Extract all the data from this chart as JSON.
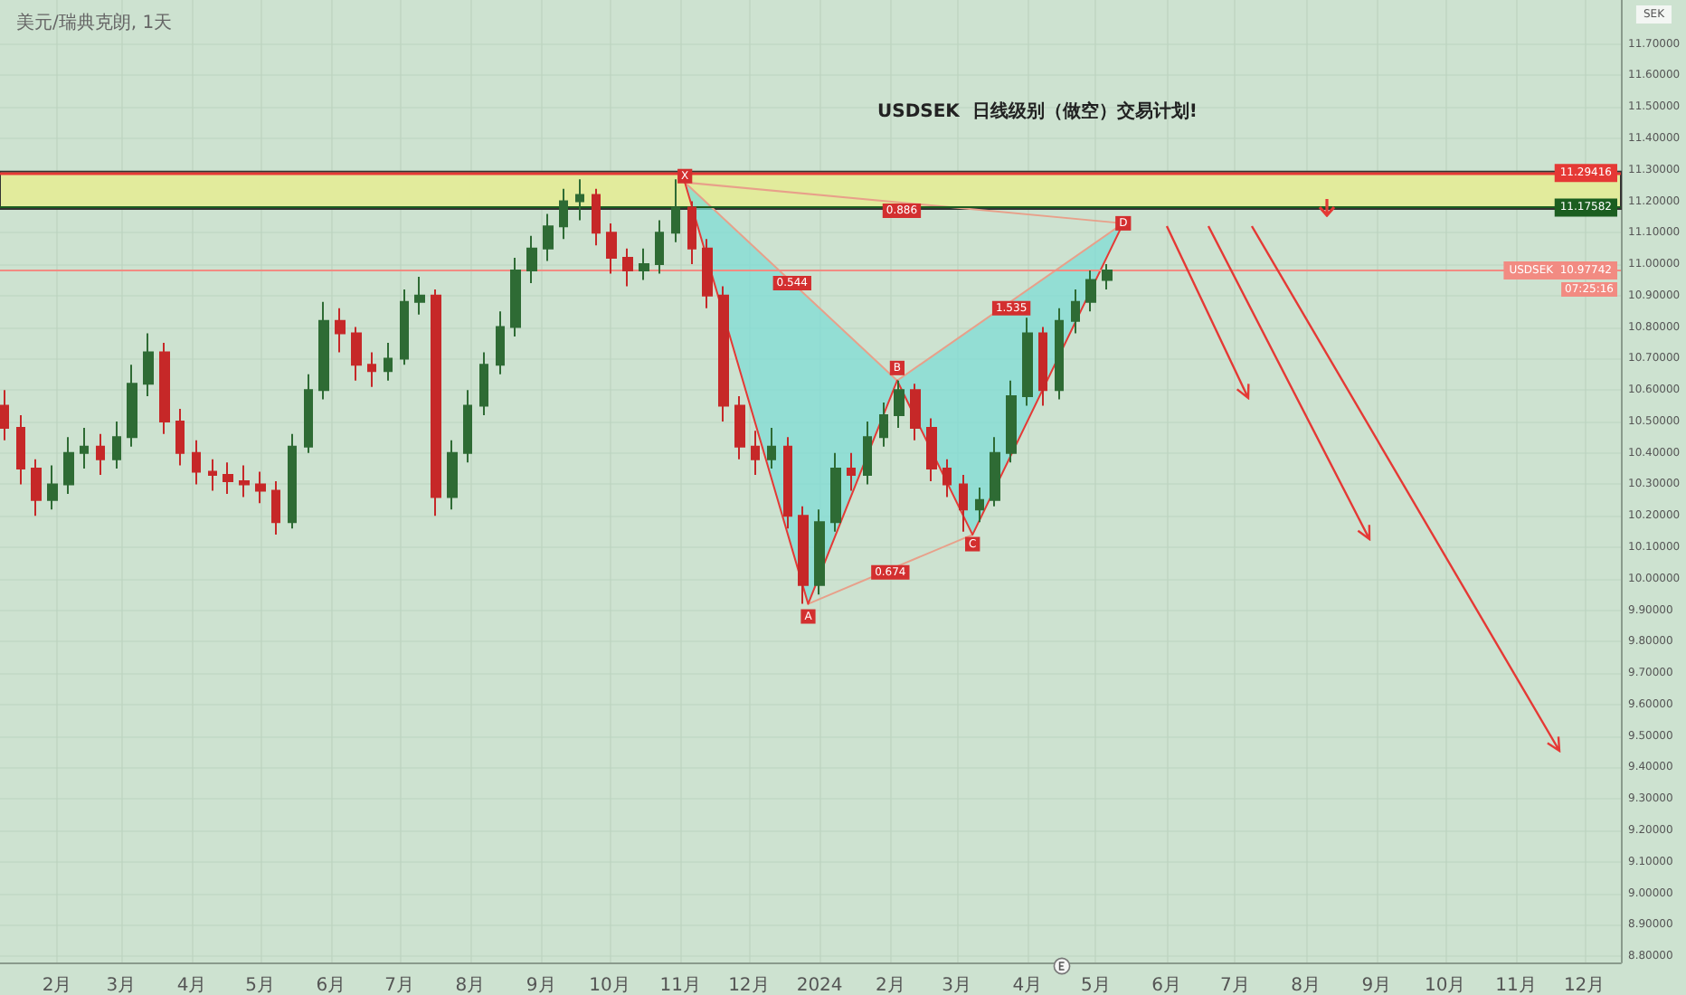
{
  "chart_data": {
    "type": "candlestick",
    "title": "USDSEK  日线级别（做空）交易计划!",
    "subtitle": "美元/瑞典克朗, 1天",
    "ylabel": "SEK",
    "xlim": [
      "2023-01-07",
      "2024-12-17"
    ],
    "xticks": [
      {
        "value": "2023-02-01",
        "label": "2月"
      },
      {
        "value": "2023-03-01",
        "label": "3月"
      },
      {
        "value": "2023-04-01",
        "label": "4月"
      },
      {
        "value": "2023-05-01",
        "label": "5月"
      },
      {
        "value": "2023-06-01",
        "label": "6月"
      },
      {
        "value": "2023-07-01",
        "label": "7月"
      },
      {
        "value": "2023-08-01",
        "label": "8月"
      },
      {
        "value": "2023-09-01",
        "label": "9月"
      },
      {
        "value": "2023-10-01",
        "label": "10月"
      },
      {
        "value": "2023-11-01",
        "label": "11月"
      },
      {
        "value": "2023-12-01",
        "label": "12月"
      },
      {
        "value": "2024-01-01",
        "label": "2024"
      },
      {
        "value": "2024-02-01",
        "label": "2月"
      },
      {
        "value": "2024-03-01",
        "label": "3月"
      },
      {
        "value": "2024-04-01",
        "label": "4月"
      },
      {
        "value": "2024-05-01",
        "label": "5月"
      },
      {
        "value": "2024-06-01",
        "label": "6月"
      },
      {
        "value": "2024-07-01",
        "label": "7月"
      },
      {
        "value": "2024-08-01",
        "label": "8月"
      },
      {
        "value": "2024-09-01",
        "label": "9月"
      },
      {
        "value": "2024-10-01",
        "label": "10月"
      },
      {
        "value": "2024-11-01",
        "label": "11月"
      },
      {
        "value": "2024-12-01",
        "label": "12月"
      }
    ],
    "ylim": [
      8.78,
      11.84
    ],
    "yticks": [
      {
        "value": 8.8,
        "label": "8.80000"
      },
      {
        "value": 8.9,
        "label": "8.90000"
      },
      {
        "value": 9.0,
        "label": "9.00000"
      },
      {
        "value": 9.1,
        "label": "9.10000"
      },
      {
        "value": 9.2,
        "label": "9.20000"
      },
      {
        "value": 9.3,
        "label": "9.30000"
      },
      {
        "value": 9.4,
        "label": "9.40000"
      },
      {
        "value": 9.5,
        "label": "9.50000"
      },
      {
        "value": 9.6,
        "label": "9.60000"
      },
      {
        "value": 9.7,
        "label": "9.70000"
      },
      {
        "value": 9.8,
        "label": "9.80000"
      },
      {
        "value": 9.9,
        "label": "9.90000"
      },
      {
        "value": 10.0,
        "label": "10.00000"
      },
      {
        "value": 10.1,
        "label": "10.10000"
      },
      {
        "value": 10.2,
        "label": "10.20000"
      },
      {
        "value": 10.3,
        "label": "10.30000"
      },
      {
        "value": 10.4,
        "label": "10.40000"
      },
      {
        "value": 10.5,
        "label": "10.50000"
      },
      {
        "value": 10.6,
        "label": "10.60000"
      },
      {
        "value": 10.7,
        "label": "10.70000"
      },
      {
        "value": 10.8,
        "label": "10.80000"
      },
      {
        "value": 10.9,
        "label": "10.90000"
      },
      {
        "value": 11.0,
        "label": "11.00000"
      },
      {
        "value": 11.1,
        "label": "11.10000"
      },
      {
        "value": 11.2,
        "label": "11.20000"
      },
      {
        "value": 11.3,
        "label": "11.30000"
      },
      {
        "value": 11.4,
        "label": "11.40000"
      },
      {
        "value": 11.5,
        "label": "11.50000"
      },
      {
        "value": 11.6,
        "label": "11.60000"
      },
      {
        "value": 11.7,
        "label": "11.70000"
      }
    ],
    "grid": true,
    "series": [
      {
        "type": "area",
        "color": "#7fdcd6",
        "x": [
          "2023-11-03",
          "2023-12-27",
          "2024-02-04"
        ],
        "values": [
          11.26,
          9.92,
          10.63
        ]
      },
      {
        "type": "area",
        "color": "#7fdcd6",
        "x": [
          "2024-02-04",
          "2024-03-08",
          "2024-05-13"
        ],
        "values": [
          10.63,
          10.14,
          11.13
        ]
      },
      {
        "type": "line",
        "color": "#e8a08a",
        "x": [
          "2023-11-03",
          "2024-02-04"
        ],
        "values": [
          11.26,
          10.63
        ]
      },
      {
        "type": "line",
        "color": "#e8a08a",
        "x": [
          "2023-12-27",
          "2024-03-08"
        ],
        "values": [
          9.92,
          10.14
        ]
      },
      {
        "type": "line",
        "color": "#e8a08a",
        "x": [
          "2024-02-04",
          "2024-05-13"
        ],
        "values": [
          10.63,
          11.13
        ]
      },
      {
        "type": "line",
        "color": "#e8a08a",
        "x": [
          "2023-11-03",
          "2024-05-13"
        ],
        "values": [
          11.26,
          11.13
        ]
      },
      {
        "type": "line",
        "color": "#e53935",
        "x": [
          "2023-11-03",
          "2023-12-27",
          "2024-02-04",
          "2024-03-08",
          "2024-05-13"
        ],
        "values": [
          11.26,
          9.92,
          10.63,
          10.14,
          11.13
        ]
      },
      {
        "x": [
          "2023-01-09",
          "2023-01-16",
          "2023-01-23",
          "2023-01-30",
          "2023-02-06",
          "2023-02-13",
          "2023-02-20",
          "2023-02-27",
          "2023-03-06",
          "2023-03-13",
          "2023-03-20",
          "2023-03-27",
          "2023-04-03",
          "2023-04-10",
          "2023-04-17",
          "2023-04-24",
          "2023-05-01",
          "2023-05-08",
          "2023-05-15",
          "2023-05-22",
          "2023-05-29",
          "2023-06-05",
          "2023-06-12",
          "2023-06-19",
          "2023-06-26",
          "2023-07-03",
          "2023-07-10",
          "2023-07-17",
          "2023-07-24",
          "2023-07-31",
          "2023-08-07",
          "2023-08-14",
          "2023-08-21",
          "2023-08-28",
          "2023-09-04",
          "2023-09-11",
          "2023-09-18",
          "2023-09-25",
          "2023-10-02",
          "2023-10-09",
          "2023-10-16",
          "2023-10-23",
          "2023-10-30",
          "2023-11-06",
          "2023-11-13",
          "2023-11-20",
          "2023-11-27",
          "2023-12-04",
          "2023-12-11",
          "2023-12-18",
          "2023-12-25",
          "2024-01-01",
          "2024-01-08",
          "2024-01-15",
          "2024-01-22",
          "2024-01-29",
          "2024-02-05",
          "2024-02-12",
          "2024-02-19",
          "2024-02-26",
          "2024-03-04",
          "2024-03-11",
          "2024-03-18",
          "2024-03-25",
          "2024-04-01",
          "2024-04-08",
          "2024-04-15",
          "2024-04-22",
          "2024-04-29",
          "2024-05-06"
        ],
        "ohlc": [
          [
            10.55,
            10.6,
            10.44,
            10.48
          ],
          [
            10.48,
            10.52,
            10.3,
            10.35
          ],
          [
            10.35,
            10.38,
            10.2,
            10.25
          ],
          [
            10.25,
            10.36,
            10.22,
            10.3
          ],
          [
            10.3,
            10.45,
            10.27,
            10.4
          ],
          [
            10.4,
            10.48,
            10.35,
            10.42
          ],
          [
            10.42,
            10.46,
            10.33,
            10.38
          ],
          [
            10.38,
            10.5,
            10.35,
            10.45
          ],
          [
            10.45,
            10.68,
            10.42,
            10.62
          ],
          [
            10.62,
            10.78,
            10.58,
            10.72
          ],
          [
            10.72,
            10.75,
            10.46,
            10.5
          ],
          [
            10.5,
            10.54,
            10.36,
            10.4
          ],
          [
            10.4,
            10.44,
            10.3,
            10.34
          ],
          [
            10.34,
            10.38,
            10.28,
            10.33
          ],
          [
            10.33,
            10.37,
            10.27,
            10.31
          ],
          [
            10.31,
            10.36,
            10.26,
            10.3
          ],
          [
            10.3,
            10.34,
            10.24,
            10.28
          ],
          [
            10.28,
            10.31,
            10.14,
            10.18
          ],
          [
            10.18,
            10.46,
            10.16,
            10.42
          ],
          [
            10.42,
            10.65,
            10.4,
            10.6
          ],
          [
            10.6,
            10.88,
            10.57,
            10.82
          ],
          [
            10.82,
            10.86,
            10.72,
            10.78
          ],
          [
            10.78,
            10.8,
            10.63,
            10.68
          ],
          [
            10.68,
            10.72,
            10.61,
            10.66
          ],
          [
            10.66,
            10.75,
            10.63,
            10.7
          ],
          [
            10.7,
            10.92,
            10.68,
            10.88
          ],
          [
            10.88,
            10.96,
            10.84,
            10.9
          ],
          [
            10.9,
            10.92,
            10.2,
            10.26
          ],
          [
            10.26,
            10.44,
            10.22,
            10.4
          ],
          [
            10.4,
            10.6,
            10.37,
            10.55
          ],
          [
            10.55,
            10.72,
            10.52,
            10.68
          ],
          [
            10.68,
            10.85,
            10.65,
            10.8
          ],
          [
            10.8,
            11.02,
            10.77,
            10.98
          ],
          [
            10.98,
            11.09,
            10.94,
            11.05
          ],
          [
            11.05,
            11.16,
            11.01,
            11.12
          ],
          [
            11.12,
            11.24,
            11.08,
            11.2
          ],
          [
            11.2,
            11.27,
            11.14,
            11.22
          ],
          [
            11.22,
            11.24,
            11.06,
            11.1
          ],
          [
            11.1,
            11.13,
            10.97,
            11.02
          ],
          [
            11.02,
            11.05,
            10.93,
            10.98
          ],
          [
            10.98,
            11.05,
            10.95,
            11.0
          ],
          [
            11.0,
            11.14,
            10.97,
            11.1
          ],
          [
            11.1,
            11.27,
            11.07,
            11.18
          ],
          [
            11.18,
            11.2,
            11.0,
            11.05
          ],
          [
            11.05,
            11.08,
            10.86,
            10.9
          ],
          [
            10.9,
            10.93,
            10.5,
            10.55
          ],
          [
            10.55,
            10.58,
            10.38,
            10.42
          ],
          [
            10.42,
            10.47,
            10.33,
            10.38
          ],
          [
            10.38,
            10.48,
            10.35,
            10.42
          ],
          [
            10.42,
            10.45,
            10.16,
            10.2
          ],
          [
            10.2,
            10.23,
            9.92,
            9.98
          ],
          [
            9.98,
            10.22,
            9.95,
            10.18
          ],
          [
            10.18,
            10.4,
            10.15,
            10.35
          ],
          [
            10.35,
            10.4,
            10.28,
            10.33
          ],
          [
            10.33,
            10.5,
            10.3,
            10.45
          ],
          [
            10.45,
            10.56,
            10.42,
            10.52
          ],
          [
            10.52,
            10.63,
            10.48,
            10.6
          ],
          [
            10.6,
            10.62,
            10.44,
            10.48
          ],
          [
            10.48,
            10.51,
            10.31,
            10.35
          ],
          [
            10.35,
            10.38,
            10.26,
            10.3
          ],
          [
            10.3,
            10.33,
            10.15,
            10.22
          ],
          [
            10.22,
            10.29,
            10.18,
            10.25
          ],
          [
            10.25,
            10.45,
            10.23,
            10.4
          ],
          [
            10.4,
            10.63,
            10.37,
            10.58
          ],
          [
            10.58,
            10.83,
            10.55,
            10.78
          ],
          [
            10.78,
            10.8,
            10.55,
            10.6
          ],
          [
            10.6,
            10.86,
            10.57,
            10.82
          ],
          [
            10.82,
            10.92,
            10.78,
            10.88
          ],
          [
            10.88,
            10.98,
            10.85,
            10.95
          ],
          [
            10.95,
            11.0,
            10.92,
            10.98
          ]
        ],
        "colors": [
          "#c62828",
          "#c62828",
          "#c62828",
          "#2e6b34",
          "#2e6b34",
          "#2e6b34",
          "#c62828",
          "#2e6b34",
          "#2e6b34",
          "#2e6b34",
          "#c62828",
          "#c62828",
          "#c62828",
          "#c62828",
          "#c62828",
          "#c62828",
          "#c62828",
          "#c62828",
          "#2e6b34",
          "#2e6b34",
          "#2e6b34",
          "#c62828",
          "#c62828",
          "#c62828",
          "#2e6b34",
          "#2e6b34",
          "#2e6b34",
          "#c62828",
          "#2e6b34",
          "#2e6b34",
          "#2e6b34",
          "#2e6b34",
          "#2e6b34",
          "#2e6b34",
          "#2e6b34",
          "#2e6b34",
          "#2e6b34",
          "#c62828",
          "#c62828",
          "#c62828",
          "#2e6b34",
          "#2e6b34",
          "#2e6b34",
          "#c62828",
          "#c62828",
          "#c62828",
          "#c62828",
          "#c62828",
          "#2e6b34",
          "#c62828",
          "#c62828",
          "#2e6b34",
          "#2e6b34",
          "#c62828",
          "#2e6b34",
          "#2e6b34",
          "#2e6b34",
          "#c62828",
          "#c62828",
          "#c62828",
          "#c62828",
          "#2e6b34",
          "#2e6b34",
          "#2e6b34",
          "#2e6b34",
          "#c62828",
          "#2e6b34",
          "#2e6b34",
          "#2e6b34",
          "#2e6b34"
        ]
      }
    ],
    "bands": [
      {
        "axis": "y",
        "from": 11.17582,
        "to": 11.29416,
        "color": "#e2eb9c"
      }
    ],
    "ref_lines": [
      {
        "axis": "y",
        "value": 11.29416,
        "label": "11.29416",
        "color": "#e53935"
      },
      {
        "axis": "y",
        "value": 11.17582,
        "label": "11.17582",
        "color": "#1b5e20"
      },
      {
        "axis": "y",
        "value": 10.97742,
        "label": "USDSEK  10.97742",
        "color": "#f28b82"
      }
    ],
    "annotations": [
      {
        "text": "X",
        "x": "2023-11-03",
        "y": 11.28
      },
      {
        "text": "A",
        "x": "2023-12-27",
        "y": 9.88
      },
      {
        "text": "B",
        "x": "2024-02-04",
        "y": 10.67
      },
      {
        "text": "C",
        "x": "2024-03-08",
        "y": 10.11
      },
      {
        "text": "D",
        "x": "2024-05-13",
        "y": 11.13
      },
      {
        "text": "0.886",
        "x": "2024-02-06",
        "y": 11.17
      },
      {
        "text": "0.544",
        "x": "2023-12-20",
        "y": 10.94
      },
      {
        "text": "1.535",
        "x": "2024-03-25",
        "y": 10.86
      },
      {
        "text": "0.674",
        "x": "2024-02-01",
        "y": 10.02
      },
      "07:25:16"
    ]
  }
}
